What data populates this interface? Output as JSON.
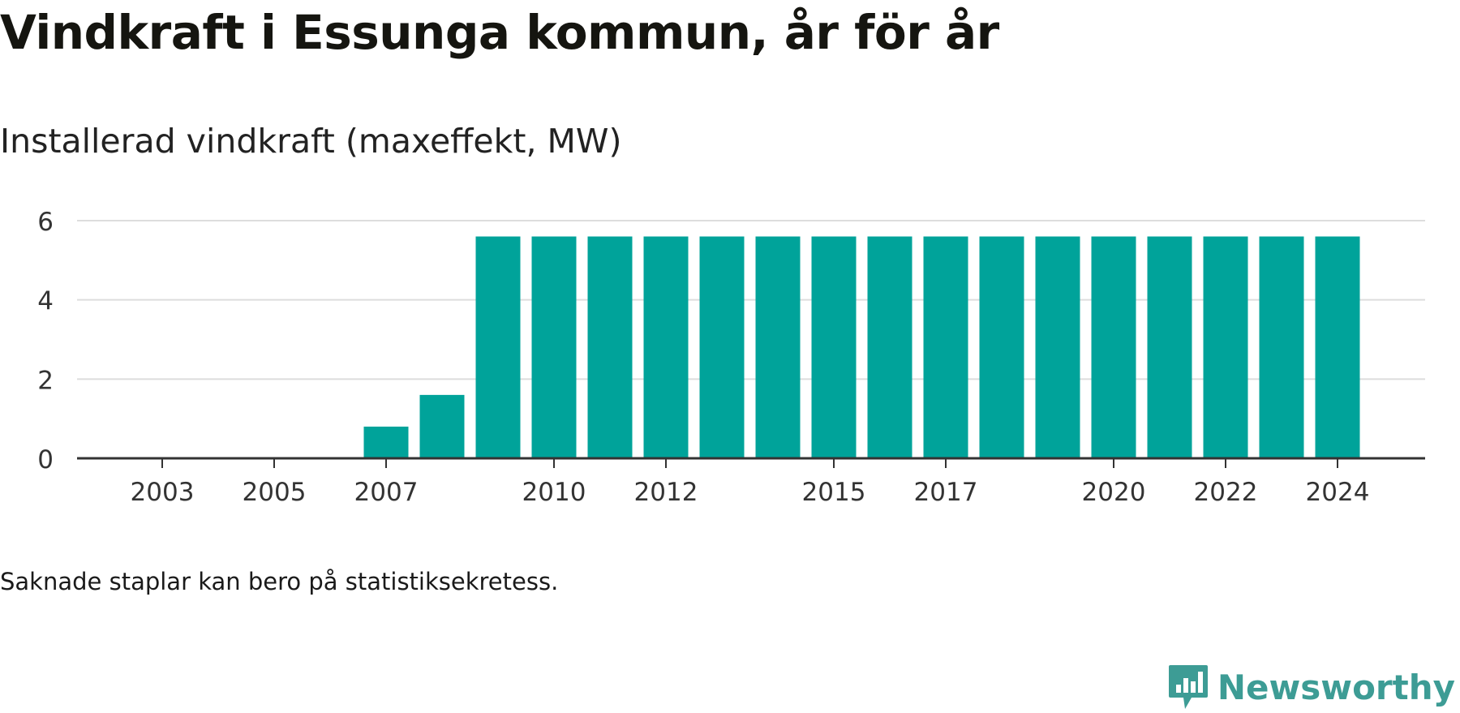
{
  "title": "Vindkraft i Essunga kommun, år för år",
  "subtitle": "Installerad vindkraft (maxeffekt, MW)",
  "footnote": "Saknade staplar kan bero på statistiksekretess.",
  "brand": {
    "name": "Newsworthy",
    "icon": "newsworthy-logo-icon"
  },
  "colors": {
    "bar": "#00a39a",
    "grid": "#dddddd",
    "axis": "#333333",
    "brand": "#3d9c95"
  },
  "chart_data": {
    "type": "bar",
    "categories": [
      "2002",
      "2003",
      "2004",
      "2005",
      "2006",
      "2007",
      "2008",
      "2009",
      "2010",
      "2011",
      "2012",
      "2013",
      "2014",
      "2015",
      "2016",
      "2017",
      "2018",
      "2019",
      "2020",
      "2021",
      "2022",
      "2023",
      "2024"
    ],
    "values": [
      0,
      0,
      0,
      0,
      0,
      0.8,
      1.6,
      5.6,
      5.6,
      5.6,
      5.6,
      5.6,
      5.6,
      5.6,
      5.6,
      5.6,
      5.6,
      5.6,
      5.6,
      5.6,
      5.6,
      5.6,
      5.6
    ],
    "xticks": [
      "2003",
      "2005",
      "2007",
      "2010",
      "2012",
      "2015",
      "2017",
      "2020",
      "2022",
      "2024"
    ],
    "yticks": [
      0,
      2,
      4,
      6
    ],
    "ylim": [
      0,
      6
    ],
    "grid": true,
    "legend": "none",
    "xlabel": "",
    "ylabel": ""
  }
}
